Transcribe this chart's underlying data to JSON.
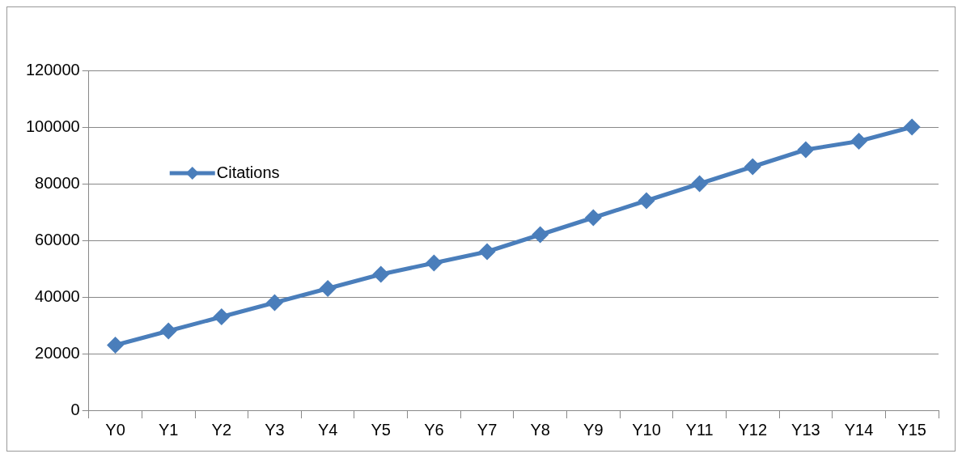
{
  "chart_data": {
    "type": "line",
    "categories": [
      "Y0",
      "Y1",
      "Y2",
      "Y3",
      "Y4",
      "Y5",
      "Y6",
      "Y7",
      "Y8",
      "Y9",
      "Y10",
      "Y11",
      "Y12",
      "Y13",
      "Y14",
      "Y15"
    ],
    "series": [
      {
        "name": "Citations",
        "color": "#4a7ebb",
        "values": [
          23000,
          28000,
          33000,
          38000,
          43000,
          48000,
          52000,
          56000,
          62000,
          68000,
          74000,
          80000,
          86000,
          92000,
          95000,
          100000
        ]
      }
    ],
    "ylim": [
      0,
      120000
    ],
    "yticks": [
      0,
      20000,
      40000,
      60000,
      80000,
      100000,
      120000
    ],
    "grid": "y",
    "legend": "top left",
    "marker": "diamond",
    "line_style": "solid"
  }
}
